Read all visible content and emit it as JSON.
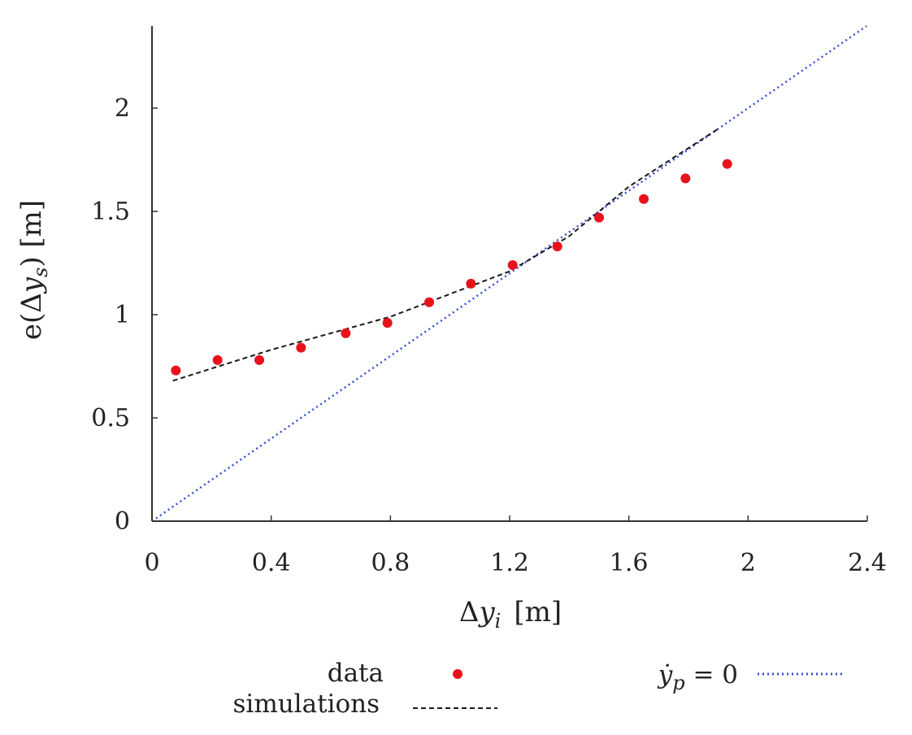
{
  "chart_data": {
    "type": "scatter",
    "xlabel": "Δy_i [m]",
    "ylabel": "e(Δy_s) [m]",
    "xlim": [
      0,
      2.4
    ],
    "ylim": [
      0,
      2.4
    ],
    "x_ticks": [
      0,
      0.4,
      0.8,
      1.2,
      1.6,
      2,
      2.4
    ],
    "x_tick_labels": [
      "0",
      "0.4",
      "0.8",
      "1.2",
      "1.6",
      "2",
      "2.4"
    ],
    "y_ticks": [
      0,
      0.5,
      1,
      1.5,
      2
    ],
    "y_tick_labels": [
      "0",
      "0.5",
      "1",
      "1.5",
      "2"
    ],
    "grid": false,
    "legend_position": "bottom",
    "series": [
      {
        "name": "data",
        "style": "markers",
        "color": "#e8121c",
        "x": [
          0.08,
          0.22,
          0.36,
          0.5,
          0.65,
          0.79,
          0.93,
          1.07,
          1.21,
          1.36,
          1.5,
          1.65,
          1.79,
          1.93
        ],
        "y": [
          0.73,
          0.78,
          0.78,
          0.84,
          0.91,
          0.96,
          1.06,
          1.15,
          1.24,
          1.33,
          1.47,
          1.56,
          1.66,
          1.73
        ]
      },
      {
        "name": "simulations",
        "style": "dashed",
        "color": "#1a1a1a",
        "x": [
          0.07,
          0.4,
          0.8,
          1.0,
          1.2,
          1.4,
          1.6,
          1.9
        ],
        "y": [
          0.68,
          0.83,
          0.99,
          1.1,
          1.21,
          1.38,
          1.62,
          1.9
        ]
      },
      {
        "name": "ẏ_p = 0",
        "style": "dotted",
        "color": "#3a4fd0",
        "x": [
          0,
          2.4
        ],
        "y": [
          0,
          2.4
        ]
      }
    ],
    "legend": {
      "data_label": "data",
      "simulations_label": "simulations",
      "yp_label": "ẏ_p = 0"
    },
    "axis_titles": {
      "x_delta": "Δ",
      "x_var": "y",
      "x_sub": "i",
      "x_unit": "[m]",
      "y_prefix": "e(Δ",
      "y_var": "y",
      "y_sub": "s",
      "y_suffix": ") [m]"
    },
    "legend_math": {
      "var": "ẏ",
      "sub": "p",
      "rest": " = 0"
    }
  }
}
